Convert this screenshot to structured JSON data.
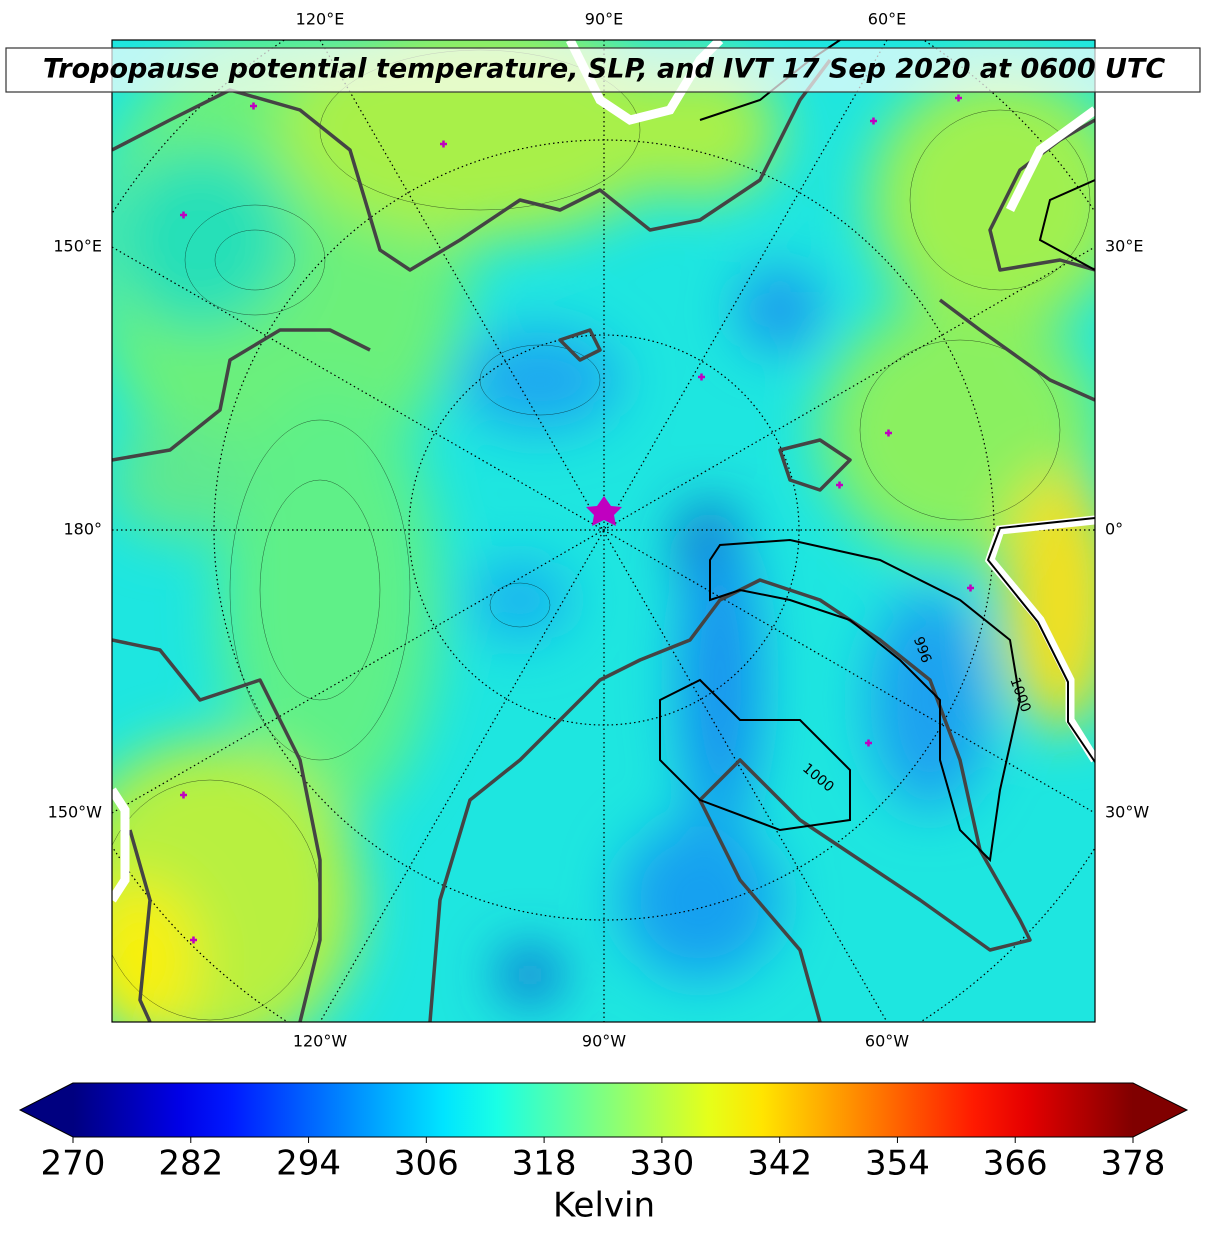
{
  "map": {
    "title": "Tropopause potential temperature, SLP, and IVT 17 Sep 2020 at 0600 UTC",
    "lon_labels": {
      "top": [
        "120°E",
        "90°E",
        "60°E"
      ],
      "bottom": [
        "120°W",
        "90°W",
        "60°W"
      ],
      "left": [
        "150°E",
        "180°",
        "150°W"
      ],
      "right": [
        "30°E",
        "0°",
        "30°W"
      ]
    },
    "contour_labels": [
      "1000",
      "996",
      "1000"
    ]
  },
  "colorbar": {
    "label": "Kelvin",
    "lim": [
      270,
      378
    ],
    "ticks": [
      270,
      282,
      294,
      306,
      318,
      330,
      342,
      354,
      366,
      378
    ],
    "colormap": "jet",
    "extend": "both"
  }
}
